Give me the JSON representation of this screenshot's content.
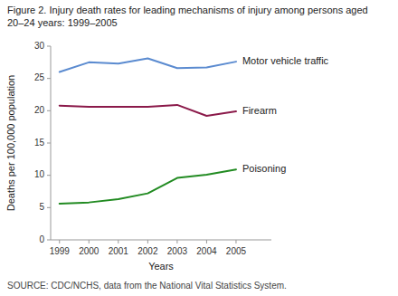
{
  "chart_data": {
    "type": "line",
    "title": "Figure 2. Injury death rates for leading mechanisms of injury among persons aged 20–24 years: 1999–2005",
    "x_label": "Years",
    "y_label": "Deaths per 100,000 population",
    "source": "SOURCE: CDC/NCHS, data from the National Vital Statistics System.",
    "x": [
      1999,
      2000,
      2001,
      2002,
      2003,
      2004,
      2005
    ],
    "series": [
      {
        "name": "Motor vehicle traffic",
        "color": "#5B8BD0",
        "values": [
          26.0,
          27.5,
          27.3,
          28.1,
          26.6,
          26.7,
          27.6
        ]
      },
      {
        "name": "Firearm",
        "color": "#8B1A4A",
        "values": [
          20.8,
          20.6,
          20.6,
          20.6,
          20.9,
          19.2,
          19.9
        ]
      },
      {
        "name": "Poisoning",
        "color": "#228B22",
        "values": [
          5.6,
          5.8,
          6.3,
          7.2,
          9.6,
          10.1,
          10.9
        ]
      }
    ],
    "xlim": [
      1998.7,
      2006.2
    ],
    "xticks": [
      1999,
      2000,
      2001,
      2002,
      2003,
      2004,
      2005
    ],
    "ylim": [
      0,
      30
    ],
    "yticks": [
      0,
      5,
      10,
      15,
      20,
      25,
      30
    ],
    "grid": false
  }
}
